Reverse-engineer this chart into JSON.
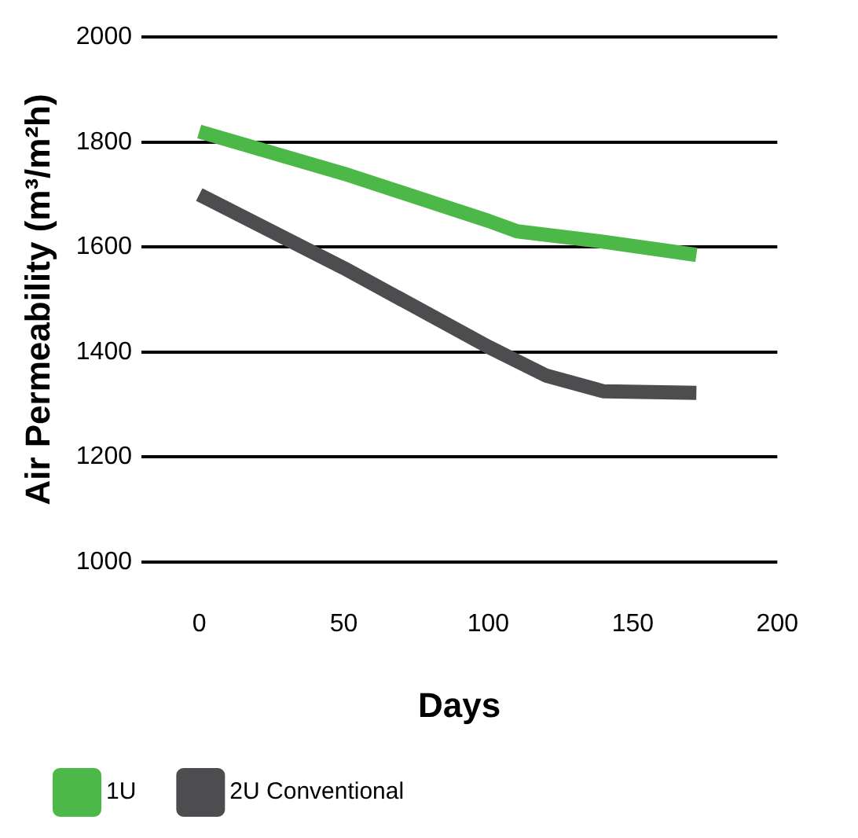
{
  "chart_data": {
    "type": "line",
    "xlabel": "Days",
    "ylabel": "Air Permeability (m³/m²h)",
    "xlim": [
      -20,
      200
    ],
    "xticks": [
      0,
      50,
      100,
      150,
      200
    ],
    "ylim": [
      1000,
      2000
    ],
    "yticks": [
      1000,
      1200,
      1400,
      1600,
      1800,
      2000
    ],
    "grid": "y",
    "legend": "bottom",
    "marker": "none",
    "line_style": "solid",
    "series": [
      {
        "name": "1U",
        "color": "#4cb848",
        "x": [
          0,
          50,
          100,
          110,
          140,
          172
        ],
        "values": [
          1820,
          1740,
          1650,
          1630,
          1610,
          1585
        ]
      },
      {
        "name": "2U Conventional",
        "color": "#4d4d4f",
        "x": [
          0,
          50,
          100,
          120,
          140,
          172
        ],
        "values": [
          1700,
          1560,
          1410,
          1355,
          1325,
          1322
        ]
      }
    ]
  }
}
